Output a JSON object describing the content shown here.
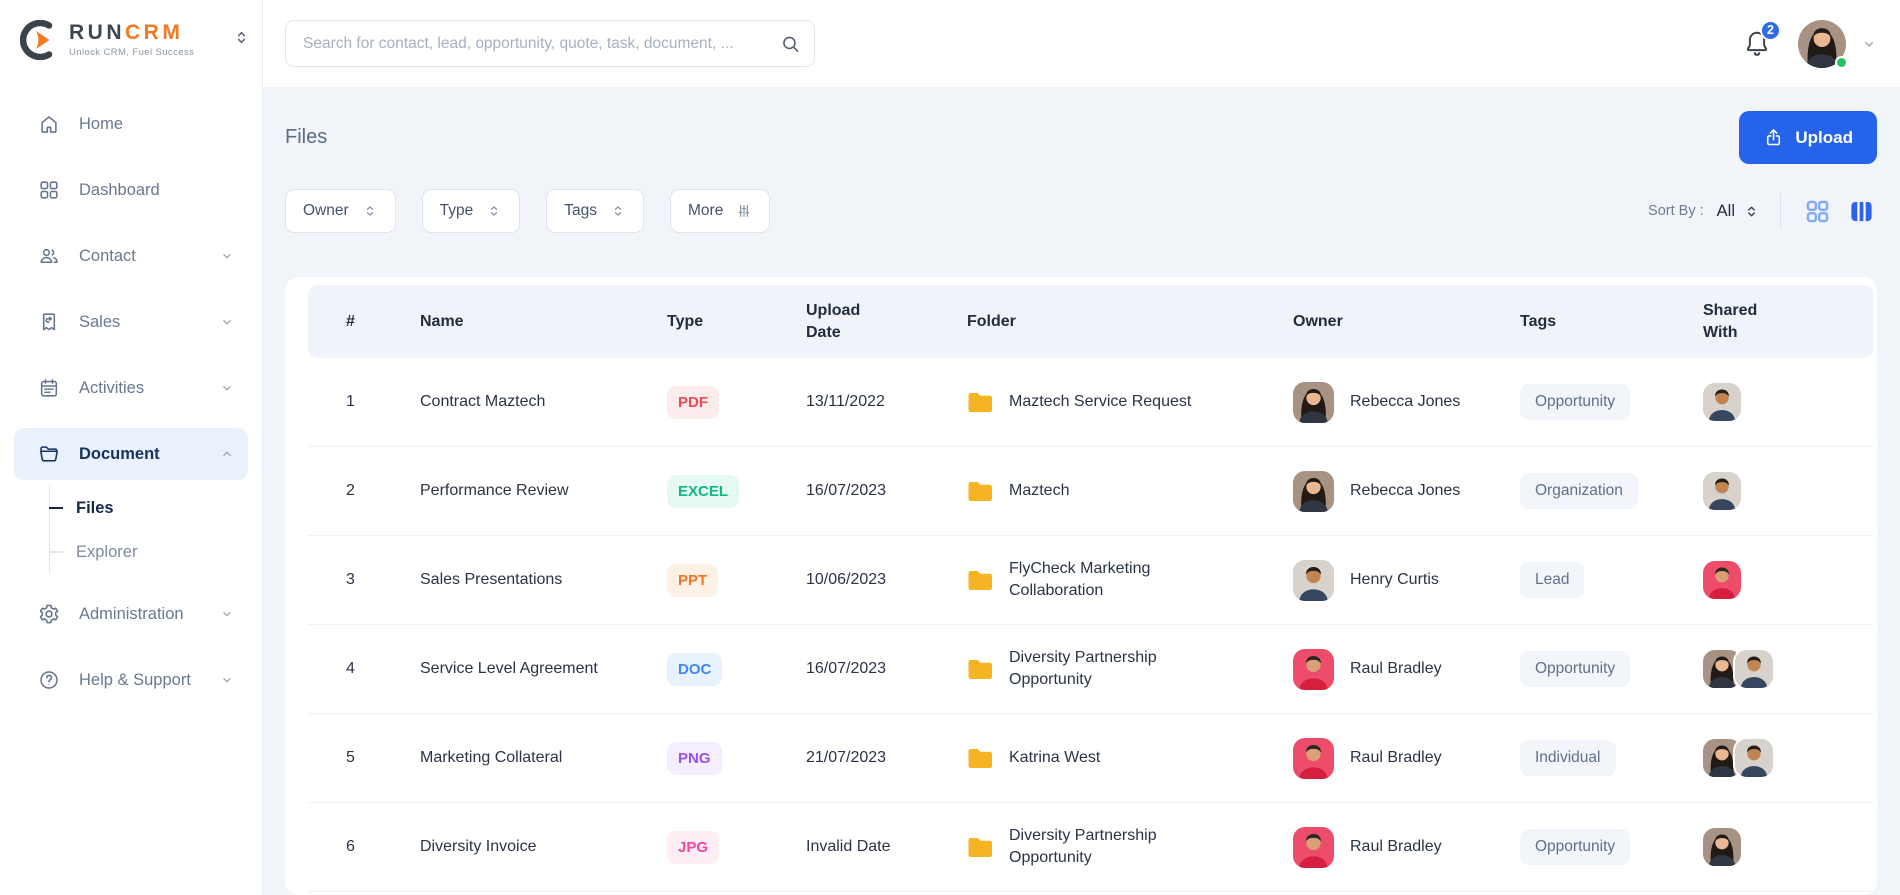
{
  "brand": {
    "name_primary": "RUN",
    "name_accent": "CRM",
    "tagline": "Unlock CRM, Fuel Success"
  },
  "topbar": {
    "search_placeholder": "Search for contact, lead, opportunity, quote, task, document, ...",
    "notification_count": "2",
    "user_avatar": "rebecca-jones"
  },
  "sidebar": {
    "items": [
      {
        "id": "home",
        "label": "Home",
        "icon": "home-icon",
        "expandable": false,
        "active": false
      },
      {
        "id": "dashboard",
        "label": "Dashboard",
        "icon": "dashboard-icon",
        "expandable": false,
        "active": false
      },
      {
        "id": "contact",
        "label": "Contact",
        "icon": "contacts-icon",
        "expandable": true,
        "active": false
      },
      {
        "id": "sales",
        "label": "Sales",
        "icon": "sales-icon",
        "expandable": true,
        "active": false
      },
      {
        "id": "activities",
        "label": "Activities",
        "icon": "calendar-icon",
        "expandable": true,
        "active": false
      },
      {
        "id": "document",
        "label": "Document",
        "icon": "folder-nav-icon",
        "expandable": true,
        "active": true,
        "expanded": true,
        "children": [
          {
            "id": "files",
            "label": "Files",
            "active": true
          },
          {
            "id": "explorer",
            "label": "Explorer",
            "active": false
          }
        ]
      },
      {
        "id": "administration",
        "label": "Administration",
        "icon": "gear-icon",
        "expandable": true,
        "active": false
      },
      {
        "id": "help-support",
        "label": "Help & Support",
        "icon": "help-icon",
        "expandable": true,
        "active": false
      }
    ]
  },
  "page": {
    "title": "Files",
    "upload_button": "Upload"
  },
  "filters": {
    "buttons": [
      {
        "label": "Owner",
        "icon": "select-updown-icon"
      },
      {
        "label": "Type",
        "icon": "select-updown-icon"
      },
      {
        "label": "Tags",
        "icon": "select-updown-icon"
      },
      {
        "label": "More",
        "icon": "sliders-icon"
      }
    ],
    "sort_by_label": "Sort By :",
    "sort_value": "All"
  },
  "view_toggle": {
    "grid_view_active": false,
    "list_view_active": true
  },
  "table": {
    "headers": [
      "#",
      "Name",
      "Type",
      "Upload Date",
      "Folder",
      "Owner",
      "Tags",
      "Shared With"
    ],
    "rows": [
      {
        "num": "1",
        "name": "Contract Maztech",
        "type": "PDF",
        "date": "13/11/2022",
        "folder": "Maztech Service Request",
        "owner": "Rebecca Jones",
        "owner_avatar": "rebecca-jones",
        "tag": "Opportunity",
        "shared": [
          "henry-curtis"
        ]
      },
      {
        "num": "2",
        "name": "Performance Review",
        "type": "EXCEL",
        "date": "16/07/2023",
        "folder": "Maztech",
        "owner": "Rebecca Jones",
        "owner_avatar": "rebecca-jones",
        "tag": "Organization",
        "shared": [
          "henry-curtis"
        ]
      },
      {
        "num": "3",
        "name": "Sales Presentations",
        "type": "PPT",
        "date": "10/06/2023",
        "folder": "FlyCheck Marketing Collaboration",
        "owner": "Henry Curtis",
        "owner_avatar": "henry-curtis",
        "tag": "Lead",
        "shared": [
          "raul-bradley"
        ]
      },
      {
        "num": "4",
        "name": "Service Level Agreement",
        "type": "DOC",
        "date": "16/07/2023",
        "folder": "Diversity Partnership Opportunity",
        "owner": "Raul Bradley",
        "owner_avatar": "raul-bradley",
        "tag": "Opportunity",
        "shared": [
          "rebecca-jones",
          "henry-curtis"
        ]
      },
      {
        "num": "5",
        "name": "Marketing Collateral",
        "type": "PNG",
        "date": "21/07/2023",
        "folder": "Katrina West",
        "owner": "Raul Bradley",
        "owner_avatar": "raul-bradley",
        "tag": "Individual",
        "shared": [
          "rebecca-jones",
          "henry-curtis"
        ]
      },
      {
        "num": "6",
        "name": "Diversity Invoice",
        "type": "JPG",
        "date": "Invalid Date",
        "folder": "Diversity Partnership Opportunity",
        "owner": "Raul Bradley",
        "owner_avatar": "raul-bradley",
        "tag": "Opportunity",
        "shared": [
          "rebecca-jones"
        ]
      }
    ]
  },
  "type_styles": {
    "PDF": {
      "color": "#ef4851",
      "bg": "#fdecec"
    },
    "EXCEL": {
      "color": "#10b981",
      "bg": "#e5f8f2"
    },
    "PPT": {
      "color": "#f4731d",
      "bg": "#fdf1e5"
    },
    "DOC": {
      "color": "#3c87f5",
      "bg": "#e8f2fd"
    },
    "PNG": {
      "color": "#9b4ff0",
      "bg": "#f5eefe"
    },
    "JPG": {
      "color": "#f0479c",
      "bg": "#fdedf5"
    }
  },
  "avatars": {
    "rebecca-jones": {
      "bg": "#a89283",
      "hair": "#221a16",
      "skin": "#eab793",
      "shirt": "#2f3642",
      "long_hair": true
    },
    "henry-curtis": {
      "bg": "#d7d2cc",
      "hair": "#241d18",
      "skin": "#c08552",
      "shirt": "#37465f",
      "long_hair": false
    },
    "raul-bradley": {
      "bg": "#ee4c6b",
      "hair": "#2e2620",
      "skin": "#d9a078",
      "shirt": "#d61f3e",
      "long_hair": false
    }
  },
  "colors": {
    "accent": "#2563eb",
    "navy": "#16325f",
    "folder_yellow": "#f7b422",
    "content_bg": "#f1f5fa",
    "table_header_bg": "#f0f4fa",
    "online_green": "#22c55e"
  }
}
